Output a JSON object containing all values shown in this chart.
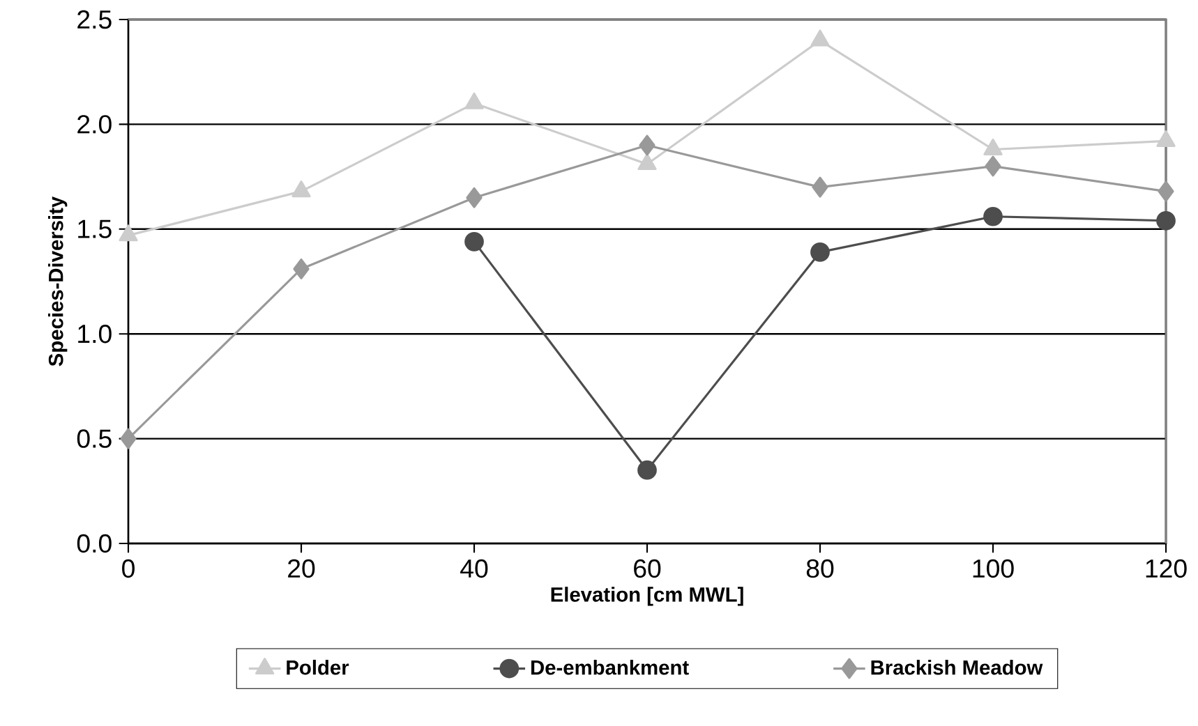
{
  "chart_data": {
    "type": "line",
    "xlabel": "Elevation [cm MWL]",
    "ylabel": "Species-Diversity",
    "x": [
      0,
      20,
      40,
      60,
      80,
      100,
      120
    ],
    "series": [
      {
        "name": "Polder",
        "color": "#cccccc",
        "marker": "triangle",
        "values": [
          1.47,
          1.68,
          2.1,
          1.81,
          2.4,
          1.88,
          1.92
        ]
      },
      {
        "name": "De-embankment",
        "color": "#4d4d4d",
        "marker": "circle",
        "values": [
          null,
          null,
          1.44,
          0.35,
          1.39,
          1.56,
          1.54
        ]
      },
      {
        "name": "Brackish Meadow",
        "color": "#999999",
        "marker": "diamond",
        "values": [
          0.5,
          1.31,
          1.65,
          1.9,
          1.7,
          1.8,
          1.68
        ]
      }
    ],
    "xlim": [
      0,
      120
    ],
    "xticks": [
      0,
      20,
      40,
      60,
      80,
      100,
      120
    ],
    "ylim": [
      0,
      2.5
    ],
    "yticks": [
      {
        "value": 0,
        "label": "0.0"
      },
      0.5,
      {
        "value": 1,
        "label": "1.0"
      },
      1.5,
      {
        "value": 2,
        "label": "2.0"
      },
      2.5
    ],
    "grid": "y",
    "legend": "bottom",
    "line_style": "solid"
  }
}
